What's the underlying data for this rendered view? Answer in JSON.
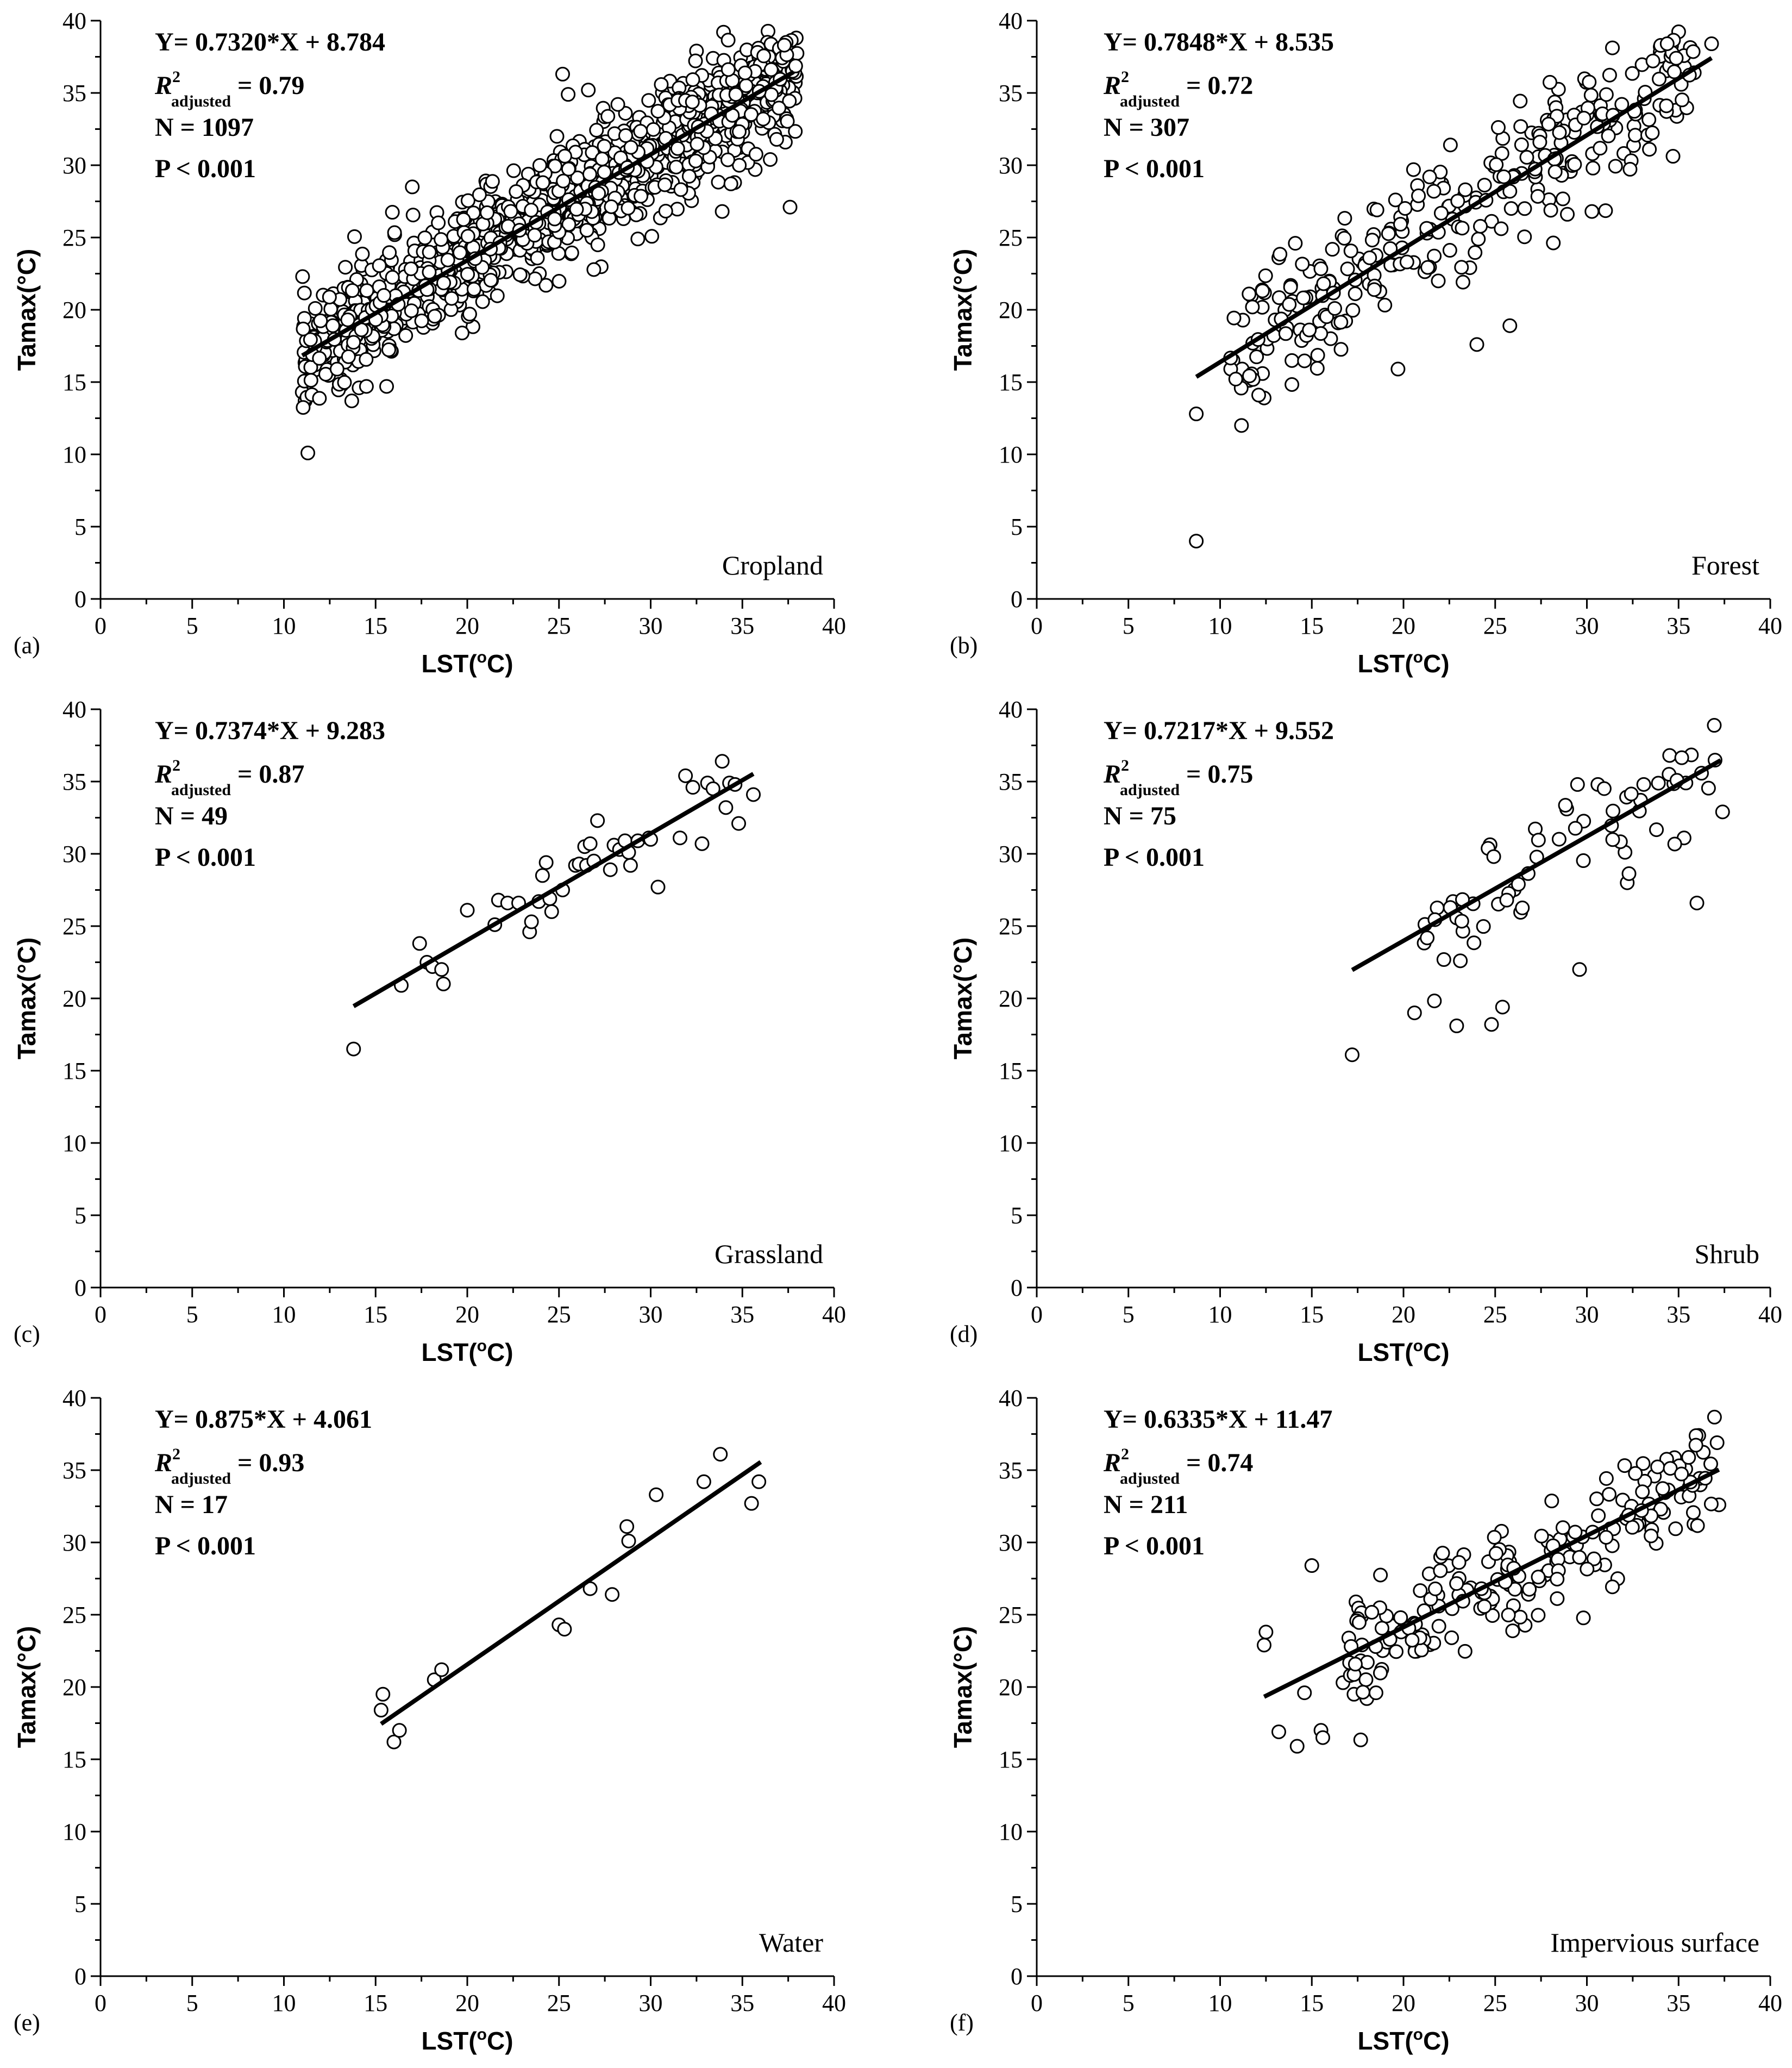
{
  "figure": {
    "x_label_main": "LST(",
    "x_label_sup": "o",
    "x_label_end": "C)",
    "y_label": "Tamax(°C)",
    "x_ticks": [
      0,
      5,
      10,
      15,
      20,
      25,
      30,
      35,
      40
    ],
    "y_ticks": [
      0,
      5,
      10,
      15,
      20,
      25,
      30,
      35,
      40
    ]
  },
  "chart_data": [
    {
      "type": "scatter",
      "panel": "(a)",
      "title": "Cropland",
      "xlabel": "LST(oC)",
      "ylabel": "Tamax(°C)",
      "xlim": [
        0,
        40
      ],
      "ylim": [
        0,
        40
      ],
      "equation": "Y= 0.7320*X + 8.784",
      "r2_label": "R",
      "r2_sup": "2",
      "r2_sub": "adjusted",
      "r2_value": " = 0.79",
      "n_text": "N = 1097",
      "p_text": "P < 0.001",
      "fit": {
        "slope": 0.732,
        "intercept": 8.784,
        "x_range": [
          11.0,
          37.8
        ]
      },
      "n": 1097,
      "points": "generated",
      "x_range": [
        11,
        38
      ],
      "noise": 2.0,
      "extra": [
        [
          11.0,
          14.3
        ],
        [
          12.6,
          16.0
        ],
        [
          13.1,
          15.2
        ],
        [
          13.7,
          13.7
        ],
        [
          14.1,
          14.6
        ],
        [
          14.5,
          14.7
        ],
        [
          14.2,
          21.8
        ],
        [
          14.3,
          22.8
        ],
        [
          15.6,
          14.7
        ],
        [
          17.0,
          28.5
        ],
        [
          25.2,
          36.3
        ],
        [
          25.5,
          34.9
        ],
        [
          26.6,
          35.2
        ],
        [
          29.3,
          24.9
        ],
        [
          33.9,
          26.8
        ],
        [
          35.7,
          29.7
        ],
        [
          37.6,
          27.1
        ],
        [
          35.9,
          37.5
        ],
        [
          32.5,
          37.9
        ]
      ]
    },
    {
      "type": "scatter",
      "panel": "(b)",
      "title": "Forest",
      "xlabel": "LST(oC)",
      "ylabel": "Tamax(°C)",
      "xlim": [
        0,
        40
      ],
      "ylim": [
        0,
        40
      ],
      "equation": "Y= 0.7848*X + 8.535",
      "r2_label": "R",
      "r2_sup": "2",
      "r2_sub": "adjusted",
      "r2_value": " = 0.72",
      "n_text": "N = 307",
      "p_text": "P < 0.001",
      "fit": {
        "slope": 0.7848,
        "intercept": 8.535,
        "x_range": [
          8.7,
          36.8
        ]
      },
      "n": 307,
      "points": "generated",
      "x_range": [
        10.5,
        36
      ],
      "noise": 2.3,
      "extra": [
        [
          8.7,
          12.8
        ],
        [
          8.7,
          4.0
        ],
        [
          10.7,
          16.5
        ],
        [
          11.2,
          15.9
        ],
        [
          12.4,
          13.9
        ],
        [
          13.0,
          19.3
        ],
        [
          13.2,
          23.6
        ],
        [
          14.1,
          24.6
        ],
        [
          19.7,
          15.9
        ],
        [
          24.0,
          17.6
        ],
        [
          25.8,
          18.9
        ],
        [
          36.8,
          38.4
        ],
        [
          34.0,
          38.2
        ]
      ]
    },
    {
      "type": "scatter",
      "panel": "(c)",
      "title": "Grassland",
      "xlabel": "LST(oC)",
      "ylabel": "Tamax(°C)",
      "xlim": [
        0,
        40
      ],
      "ylim": [
        0,
        40
      ],
      "equation": "Y= 0.7374*X + 9.283",
      "r2_label": "R",
      "r2_sup": "2",
      "r2_sub": "adjusted",
      "r2_value": " = 0.87",
      "n_text": "N = 49",
      "p_text": "P < 0.001",
      "fit": {
        "slope": 0.7374,
        "intercept": 9.283,
        "x_range": [
          13.8,
          35.6
        ]
      },
      "n": 49,
      "points": "explicit",
      "extra": [
        [
          13.8,
          16.5
        ],
        [
          16.4,
          20.9
        ],
        [
          17.4,
          23.8
        ],
        [
          17.8,
          22.5
        ],
        [
          18.1,
          22.2
        ],
        [
          18.6,
          22.0
        ],
        [
          18.7,
          21.0
        ],
        [
          20.0,
          26.1
        ],
        [
          21.5,
          25.1
        ],
        [
          21.7,
          26.8
        ],
        [
          22.2,
          26.6
        ],
        [
          23.4,
          24.6
        ],
        [
          23.5,
          25.3
        ],
        [
          23.9,
          26.7
        ],
        [
          24.1,
          28.5
        ],
        [
          24.3,
          29.4
        ],
        [
          24.5,
          26.9
        ],
        [
          24.6,
          26.0
        ],
        [
          25.2,
          27.5
        ],
        [
          25.9,
          29.2
        ],
        [
          26.1,
          29.3
        ],
        [
          26.4,
          30.5
        ],
        [
          26.5,
          29.2
        ],
        [
          26.7,
          30.7
        ],
        [
          26.9,
          29.5
        ],
        [
          27.1,
          32.3
        ],
        [
          27.8,
          28.9
        ],
        [
          28.0,
          30.6
        ],
        [
          28.3,
          30.3
        ],
        [
          28.6,
          30.9
        ],
        [
          28.8,
          30.1
        ],
        [
          28.9,
          29.2
        ],
        [
          29.3,
          30.9
        ],
        [
          29.9,
          31.1
        ],
        [
          30.4,
          27.7
        ],
        [
          31.6,
          31.1
        ],
        [
          31.9,
          35.4
        ],
        [
          32.3,
          34.6
        ],
        [
          32.8,
          30.7
        ],
        [
          33.1,
          34.9
        ],
        [
          33.4,
          34.5
        ],
        [
          33.9,
          36.4
        ],
        [
          34.1,
          33.2
        ],
        [
          34.3,
          34.9
        ],
        [
          34.6,
          34.8
        ],
        [
          34.8,
          32.1
        ],
        [
          35.6,
          34.1
        ],
        [
          22.8,
          26.6
        ],
        [
          30.0,
          31.0
        ]
      ]
    },
    {
      "type": "scatter",
      "panel": "(d)",
      "title": "Shrub",
      "xlabel": "LST(oC)",
      "ylabel": "Tamax(°C)",
      "xlim": [
        0,
        40
      ],
      "ylim": [
        0,
        40
      ],
      "equation": "Y= 0.7217*X + 9.552",
      "r2_label": "R",
      "r2_sup": "2",
      "r2_sub": "adjusted",
      "r2_value": " = 0.75",
      "n_text": "N = 75",
      "p_text": "P < 0.001",
      "fit": {
        "slope": 0.7217,
        "intercept": 9.552,
        "x_range": [
          17.2,
          37.3
        ]
      },
      "n": 75,
      "points": "generated",
      "x_range": [
        21,
        37
      ],
      "noise": 1.9,
      "extra": [
        [
          17.2,
          16.1
        ],
        [
          20.6,
          19.0
        ],
        [
          22.9,
          18.1
        ],
        [
          23.1,
          22.6
        ],
        [
          24.8,
          18.2
        ],
        [
          25.4,
          19.4
        ],
        [
          28.9,
          33.1
        ],
        [
          29.6,
          22.0
        ],
        [
          30.6,
          34.8
        ],
        [
          33.1,
          34.8
        ],
        [
          35.4,
          34.9
        ],
        [
          36.0,
          26.6
        ],
        [
          37.4,
          32.9
        ],
        [
          35.3,
          31.1
        ],
        [
          32.2,
          28.0
        ]
      ]
    },
    {
      "type": "scatter",
      "panel": "(e)",
      "title": "Water",
      "xlabel": "LST(oC)",
      "ylabel": "Tamax(°C)",
      "xlim": [
        0,
        40
      ],
      "ylim": [
        0,
        40
      ],
      "equation": "Y= 0.875*X + 4.061",
      "r2_label": "R",
      "r2_sup": "2",
      "r2_sub": "adjusted",
      "r2_value": " = 0.93",
      "n_text": "N = 17",
      "p_text": "P < 0.001",
      "fit": {
        "slope": 0.875,
        "intercept": 4.061,
        "x_range": [
          15.3,
          36.0
        ]
      },
      "n": 17,
      "points": "explicit",
      "extra": [
        [
          15.3,
          18.4
        ],
        [
          15.4,
          19.5
        ],
        [
          16.0,
          16.2
        ],
        [
          16.3,
          17.0
        ],
        [
          18.2,
          20.5
        ],
        [
          18.6,
          21.2
        ],
        [
          25.0,
          24.3
        ],
        [
          25.3,
          24.0
        ],
        [
          26.7,
          26.8
        ],
        [
          27.9,
          26.4
        ],
        [
          28.7,
          31.1
        ],
        [
          28.8,
          30.1
        ],
        [
          30.3,
          33.3
        ],
        [
          32.9,
          34.2
        ],
        [
          33.8,
          36.1
        ],
        [
          35.5,
          32.7
        ],
        [
          35.9,
          34.2
        ]
      ]
    },
    {
      "type": "scatter",
      "panel": "(f)",
      "title": "Impervious surface",
      "xlabel": "LST(oC)",
      "ylabel": "Tamax(°C)",
      "xlim": [
        0,
        40
      ],
      "ylim": [
        0,
        40
      ],
      "equation": "Y= 0.6335*X + 11.47",
      "r2_label": "R",
      "r2_sup": "2",
      "r2_sub": "adjusted",
      "r2_value": " = 0.74",
      "n_text": "N = 211",
      "p_text": "P < 0.001",
      "fit": {
        "slope": 0.6335,
        "intercept": 11.47,
        "x_range": [
          12.4,
          37.2
        ]
      },
      "n": 211,
      "points": "generated",
      "x_range": [
        17,
        37
      ],
      "noise": 1.9,
      "extra": [
        [
          12.4,
          22.9
        ],
        [
          12.5,
          23.8
        ],
        [
          13.2,
          16.9
        ],
        [
          14.2,
          15.9
        ],
        [
          14.6,
          19.6
        ],
        [
          15.0,
          28.4
        ],
        [
          15.5,
          17.0
        ],
        [
          15.6,
          16.5
        ],
        [
          16.7,
          20.3
        ],
        [
          17.1,
          20.8
        ],
        [
          17.3,
          19.5
        ],
        [
          18.0,
          19.2
        ],
        [
          18.5,
          19.6
        ],
        [
          36.1,
          37.4
        ],
        [
          37.1,
          36.9
        ],
        [
          37.2,
          32.6
        ]
      ]
    }
  ]
}
